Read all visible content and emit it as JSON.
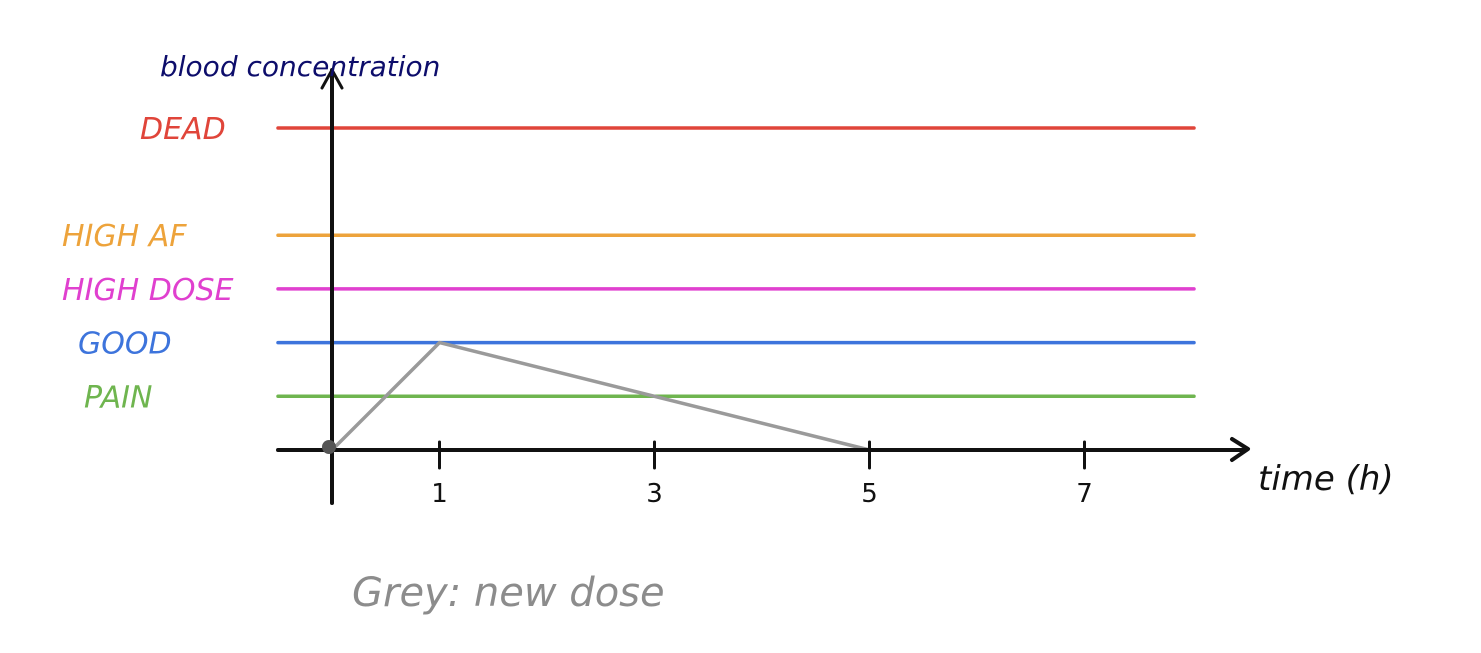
{
  "chart_data": {
    "type": "line",
    "ylabel": "blood concentration",
    "xlabel": "time (h)",
    "x_ticks": [
      1,
      3,
      5,
      7
    ],
    "xlim": [
      0,
      8
    ],
    "ylim": [
      0,
      6
    ],
    "grid": false,
    "levels": [
      {
        "label": "DEAD",
        "value": 6,
        "color": "#e0453a"
      },
      {
        "label": "HIGH AF",
        "value": 4,
        "color": "#eda33b"
      },
      {
        "label": "HIGH DOSE",
        "value": 3,
        "color": "#e040cf"
      },
      {
        "label": "GOOD",
        "value": 2,
        "color": "#3d74dc"
      },
      {
        "label": "PAIN",
        "value": 1,
        "color": "#6fb54f"
      }
    ],
    "series": [
      {
        "name": "new dose",
        "color": "#9a9a9a",
        "x": [
          0,
          1,
          5
        ],
        "y": [
          0,
          2,
          0
        ]
      }
    ],
    "annotation": "Grey: new dose"
  }
}
